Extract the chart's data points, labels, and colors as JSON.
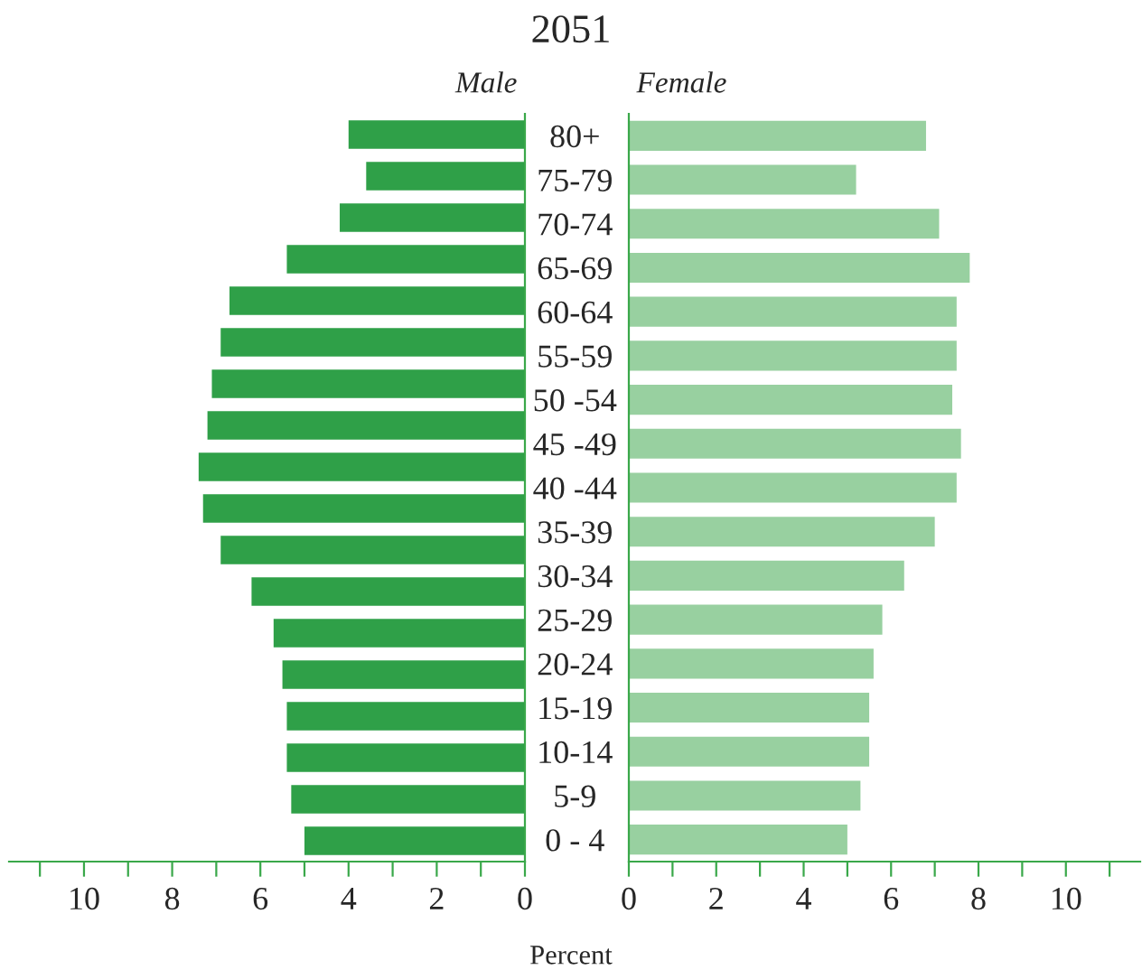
{
  "chart_data": [
    {
      "type": "bar",
      "orientation": "horizontal",
      "title": "2051",
      "subtitle": "Male",
      "tick_labels": "x",
      "grid": false,
      "categories": [
        null,
        null,
        null,
        null,
        null,
        null,
        null,
        null,
        null,
        null,
        null,
        null,
        null,
        null,
        null,
        null,
        null,
        null
      ],
      "values": [
        4.0,
        3.6,
        4.2,
        5.4,
        6.7,
        6.9,
        7.1,
        7.2,
        7.4,
        7.3,
        6.9,
        6.2,
        5.7,
        5.5,
        5.4,
        5.4,
        5.3,
        5.0
      ],
      "color": "#2fa048",
      "xlim": [
        11.7,
        0
      ],
      "xticks": [
        0,
        {
          "value": 1,
          "label": null
        },
        2,
        {
          "value": 3,
          "label": null
        },
        4,
        {
          "value": 5,
          "label": null
        },
        6,
        {
          "value": 7,
          "label": null
        },
        8,
        {
          "value": 9,
          "label": null
        },
        10,
        {
          "value": 11,
          "label": null
        }
      ]
    },
    {
      "type": "bar",
      "orientation": "horizontal",
      "subtitle": "Female",
      "xlabel": "Percent",
      "grid": false,
      "categories": [
        "80+",
        "75-79",
        "70-74",
        "65-69",
        "60-64",
        "55-59",
        "50 -54",
        "45 -49",
        "40 -44",
        "35-39",
        "30-34",
        "25-29",
        "20-24",
        "15-19",
        "10-14",
        "5-9",
        "0 - 4"
      ],
      "values": [
        6.8,
        5.2,
        7.1,
        7.8,
        7.5,
        7.5,
        7.4,
        7.6,
        7.5,
        7.0,
        6.3,
        5.8,
        5.6,
        5.5,
        5.5,
        5.3,
        5.0
      ],
      "color": "#98d0a0",
      "xlim": [
        0,
        11.7
      ],
      "xticks": [
        0,
        {
          "value": 1,
          "label": null
        },
        2,
        {
          "value": 3,
          "label": null
        },
        4,
        {
          "value": 5,
          "label": null
        },
        6,
        {
          "value": 7,
          "label": null
        },
        8,
        {
          "value": 9,
          "label": null
        },
        10,
        {
          "value": 11,
          "label": null
        }
      ]
    }
  ]
}
